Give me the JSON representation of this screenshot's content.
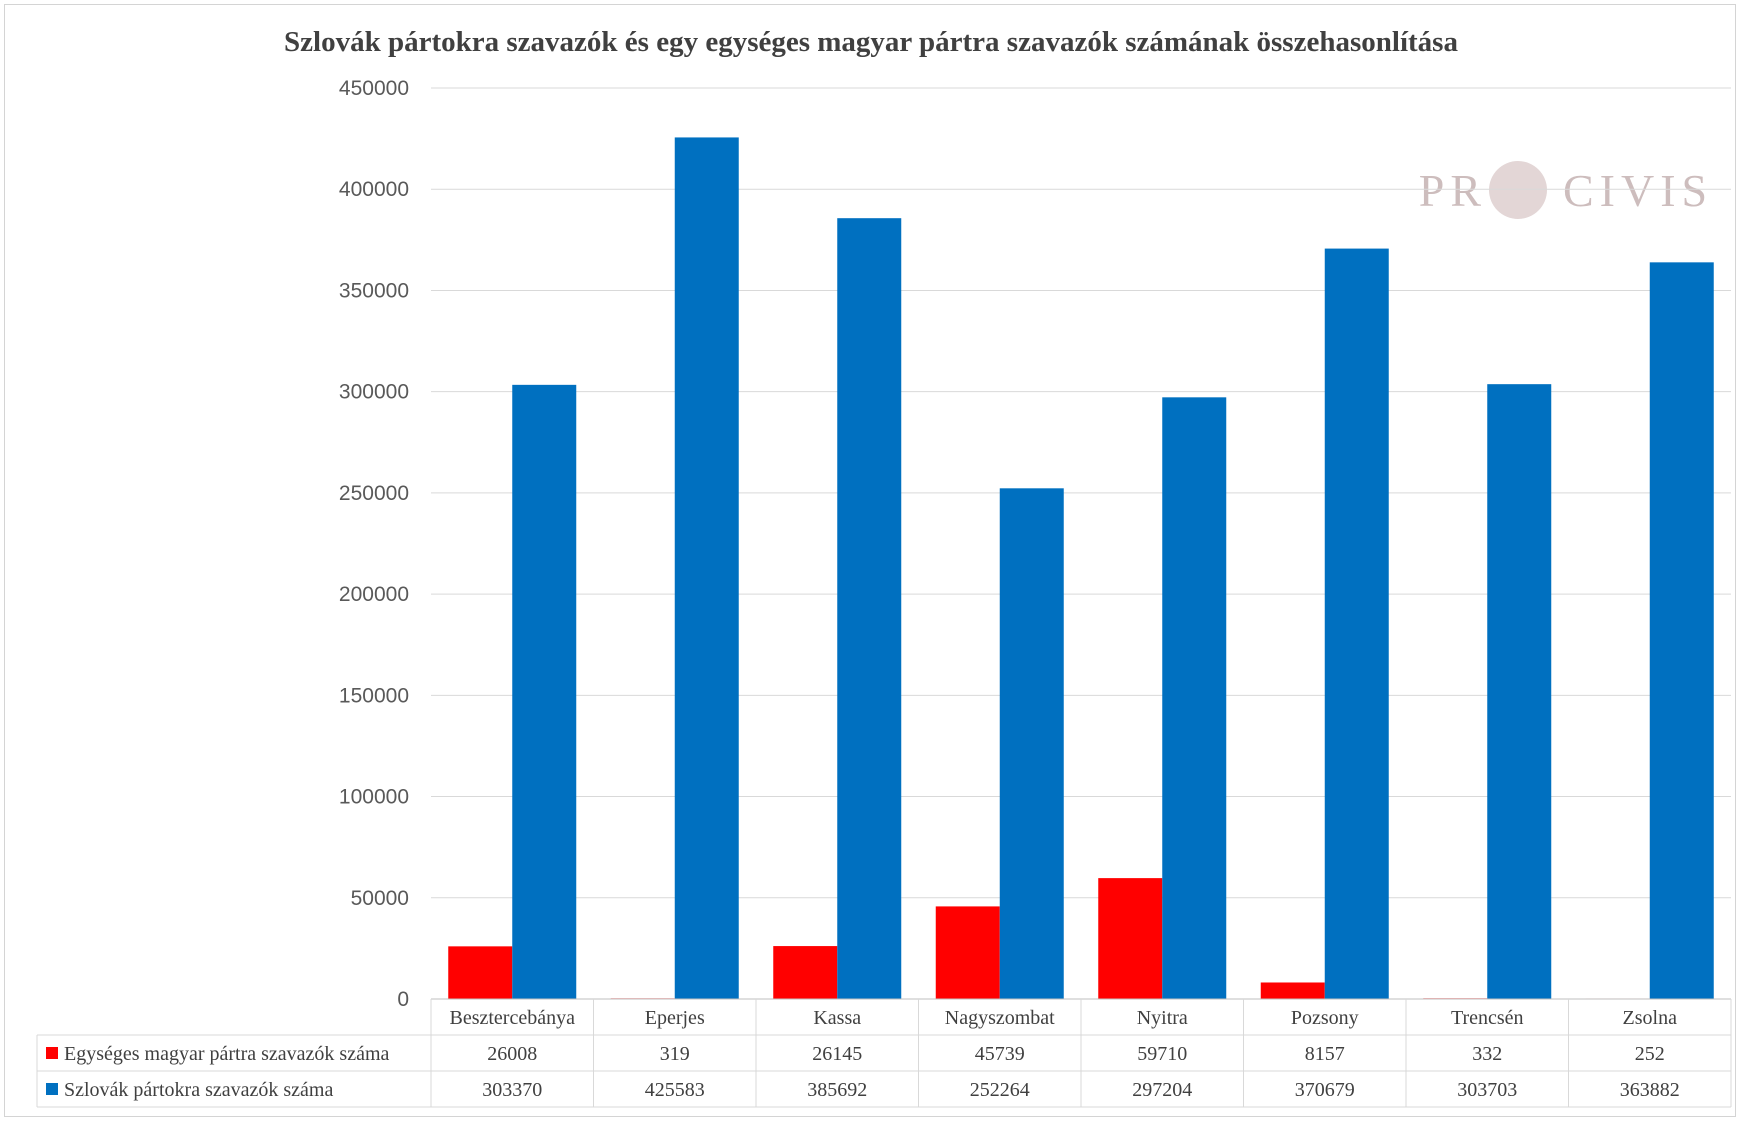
{
  "chart_data": {
    "type": "bar",
    "title": "Szlovák pártokra szavazók és egy egységes magyar pártra szavazók számának összehasonlítása",
    "categories": [
      "Besztercebánya",
      "Eperjes",
      "Kassa",
      "Nagyszombat",
      "Nyitra",
      "Pozsony",
      "Trencsén",
      "Zsolna"
    ],
    "series": [
      {
        "name": "Egységes magyar pártra szavazók száma",
        "color": "#ff0000",
        "values": [
          26008,
          319,
          26145,
          45739,
          59710,
          8157,
          332,
          252
        ]
      },
      {
        "name": "Szlovák pártokra szavazók száma",
        "color": "#0070c0",
        "values": [
          303370,
          425583,
          385692,
          252264,
          297204,
          370679,
          303703,
          363882
        ]
      }
    ],
    "ylim": [
      0,
      450000
    ],
    "yticks": [
      "0",
      "50000",
      "100000",
      "150000",
      "200000",
      "250000",
      "300000",
      "350000",
      "400000",
      "450000"
    ],
    "grid": true,
    "legend": "data-table"
  },
  "watermark": {
    "left": "PR",
    "right": "CIVIS"
  }
}
